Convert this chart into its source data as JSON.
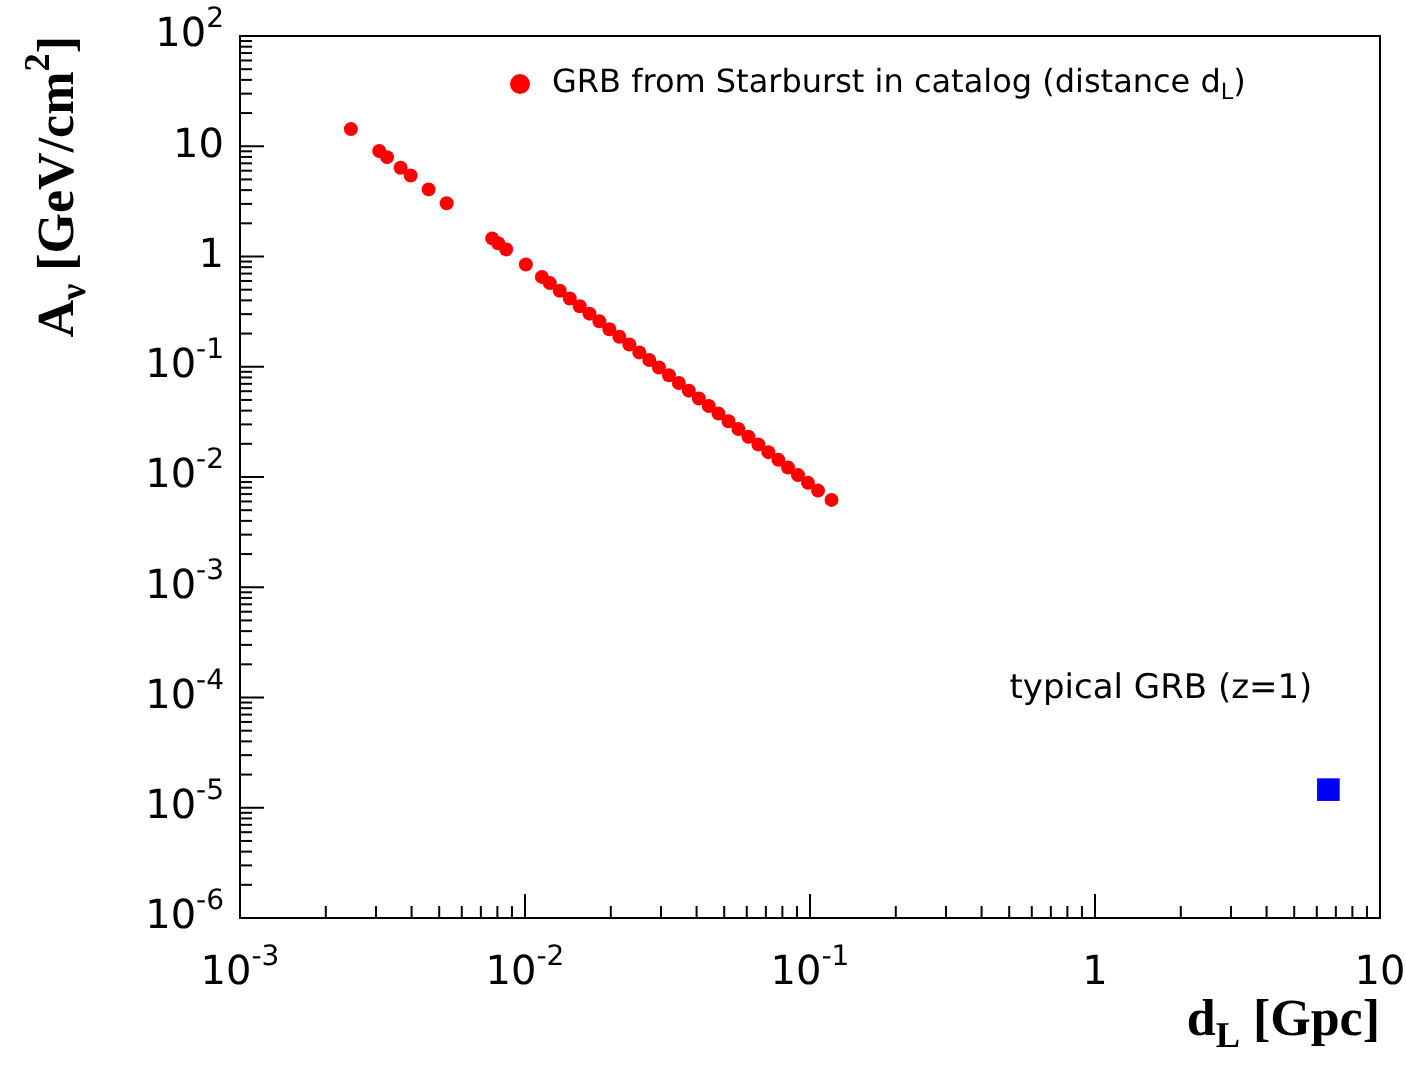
{
  "chart_data": {
    "type": "scatter",
    "xlabel": "d$_{L}$ [Gpc]",
    "ylabel": "A$_{ν}$ [GeV/cm$^{2}$]",
    "log": "xy",
    "legend": "top right",
    "grid": false,
    "xlim": [
      0.001,
      10
    ],
    "ylim": [
      1e-06,
      100
    ],
    "xticks": [
      {
        "value": 0.001,
        "label": "10$^{-3}$"
      },
      {
        "value": 0.01,
        "label": "10$^{-2}$"
      },
      {
        "value": 0.1,
        "label": "10$^{-1}$"
      },
      1,
      10
    ],
    "yticks": [
      {
        "value": 1e-06,
        "label": "10$^{-6}$"
      },
      {
        "value": 1e-05,
        "label": "10$^{-5}$"
      },
      {
        "value": 0.0001,
        "label": "10$^{-4}$"
      },
      {
        "value": 0.001,
        "label": "10$^{-3}$"
      },
      {
        "value": 0.01,
        "label": "10$^{-2}$"
      },
      {
        "value": 0.1,
        "label": "10$^{-1}$"
      },
      1,
      10,
      {
        "value": 100,
        "label": "10$^{2}$"
      }
    ],
    "series": [
      {
        "name": "GRB from Starburst in catalog (distance d$_{L}$)",
        "color": "#ff0000",
        "marker": "circle",
        "x": [
          0.00245,
          0.00308,
          0.00328,
          0.00366,
          0.00397,
          0.00459,
          0.00531,
          0.00767,
          0.00805,
          0.00859,
          0.01007,
          0.01146,
          0.01222,
          0.01324,
          0.01436,
          0.01556,
          0.01683,
          0.01824,
          0.01977,
          0.02143,
          0.02323,
          0.02518,
          0.02729,
          0.02951,
          0.03199,
          0.03467,
          0.03758,
          0.04074,
          0.04416,
          0.04775,
          0.05176,
          0.0561,
          0.06081,
          0.06592,
          0.07145,
          0.07745,
          0.08375,
          0.09078,
          0.0984,
          0.1067,
          0.119
        ],
        "values": [
          14.3,
          9.06,
          7.96,
          6.38,
          5.43,
          4.06,
          3.04,
          1.46,
          1.32,
          1.16,
          0.845,
          0.653,
          0.574,
          0.489,
          0.416,
          0.354,
          0.303,
          0.258,
          0.219,
          0.187,
          0.159,
          0.135,
          0.115,
          0.0984,
          0.0838,
          0.0713,
          0.0607,
          0.0516,
          0.044,
          0.0376,
          0.032,
          0.0272,
          0.0232,
          0.0197,
          0.0168,
          0.0143,
          0.0122,
          0.0104,
          0.00885,
          0.00753,
          0.0062
        ]
      },
      {
        "name": "typical GRB (z=1)",
        "color": "#0000ff",
        "marker": "square",
        "x": [
          6.59
        ],
        "values": [
          1.46e-05
        ]
      }
    ]
  }
}
